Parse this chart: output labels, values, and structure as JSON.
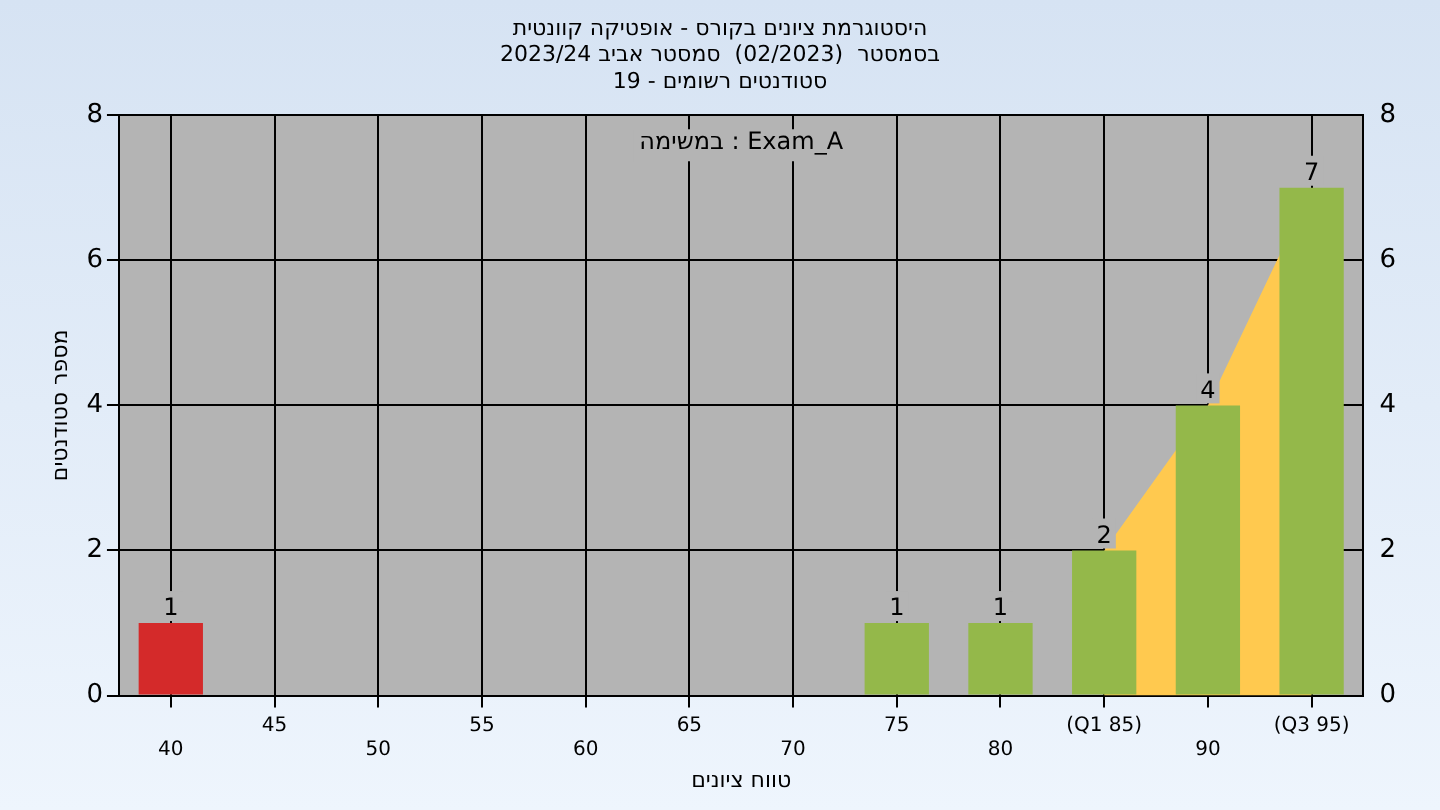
{
  "chart_data": {
    "type": "bar",
    "title": "היסטוגרמת ציונים בקורס - אופטיקה קוונטית",
    "subtitle": "בסמסטר  (02/2023)  סמסטר אביב 2023/24\nסטודנטים רשומים - 19",
    "xlabel": "טווח ציונים",
    "ylabel": "מספר סטודנטים",
    "annotations": [
      "במשימה : Exam_A"
    ],
    "categories": [
      "40",
      "45",
      "50",
      "55",
      "60",
      "65",
      "70",
      "75",
      "80",
      "(Q1 85)",
      "90",
      "(Q3 95)"
    ],
    "series": [
      {
        "type": "area",
        "color": "#ffc94f",
        "values": [
          null,
          null,
          null,
          null,
          null,
          null,
          null,
          null,
          null,
          2,
          4,
          7
        ]
      },
      {
        "colors": [
          "#d42a2a",
          "#94b84a",
          "#94b84a",
          "#94b84a",
          "#94b84a",
          "#94b84a",
          "#94b84a",
          "#94b84a",
          "#94b84a",
          "#94b84a",
          "#94b84a",
          "#94b84a"
        ],
        "values": [
          1,
          0,
          0,
          0,
          0,
          0,
          0,
          1,
          1,
          2,
          4,
          7
        ],
        "value_labels": [
          "1",
          null,
          null,
          null,
          null,
          null,
          null,
          "1",
          "1",
          "2",
          "4",
          "7"
        ]
      }
    ],
    "ylim": [
      0,
      8
    ],
    "yticks": [
      0,
      2,
      4,
      6,
      8
    ],
    "y2lim": [
      0,
      8
    ],
    "y2ticks": [
      0,
      2,
      4,
      6,
      8
    ],
    "grid": true,
    "legend": false
  }
}
